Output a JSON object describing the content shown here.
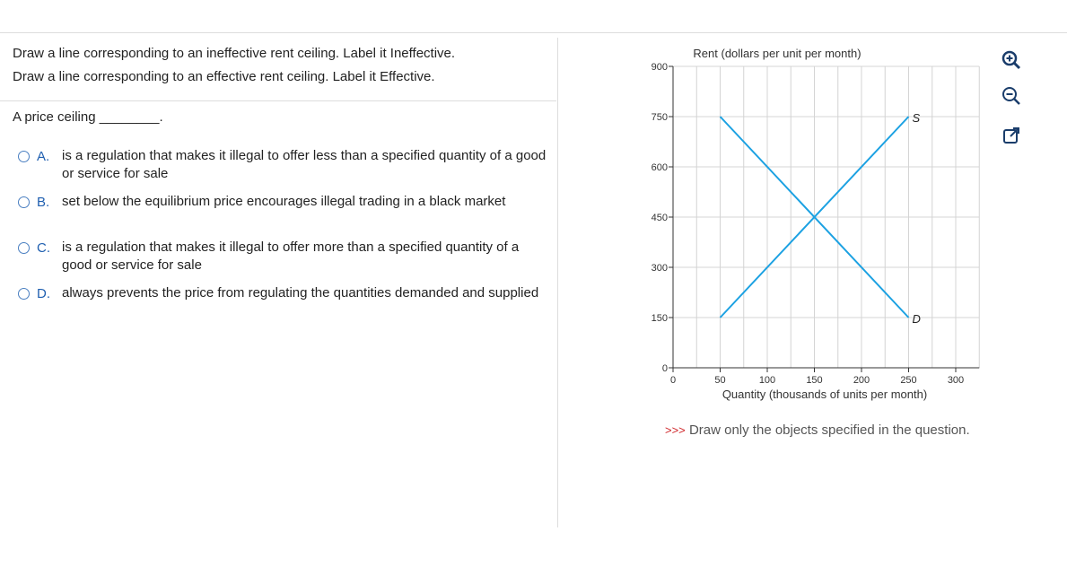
{
  "instructions": [
    "Draw a line corresponding to an ineffective rent ceiling. Label it Ineffective.",
    "Draw a line corresponding to an effective rent ceiling. Label it Effective."
  ],
  "question": "A price ceiling ________.",
  "options": [
    {
      "letter": "A.",
      "text": "is a regulation that makes it illegal to offer less than a specified quantity of a good or service for sale"
    },
    {
      "letter": "B.",
      "text": "set below the equilibrium price encourages illegal trading in a black market"
    },
    {
      "letter": "C.",
      "text": "is a regulation that makes it illegal to offer more than a specified quantity of a good or service for sale"
    },
    {
      "letter": "D.",
      "text": "always prevents the price from regulating the quantities demanded and supplied"
    }
  ],
  "chart_data": {
    "type": "line",
    "ylabel": "Rent (dollars per unit per month)",
    "xlabel": "Quantity (thousands of units per month)",
    "xlim": [
      0,
      325
    ],
    "ylim": [
      0,
      900
    ],
    "xticks": [
      0,
      50,
      100,
      150,
      200,
      250,
      300
    ],
    "yticks": [
      0,
      150,
      300,
      450,
      600,
      750,
      900
    ],
    "xgrid": [
      25,
      50,
      75,
      100,
      125,
      150,
      175,
      200,
      225,
      250,
      275,
      300,
      325
    ],
    "ygrid": [
      150,
      300,
      450,
      600,
      750,
      900
    ],
    "series": [
      {
        "name": "D",
        "color": "#1ba1e2",
        "x": [
          50,
          250
        ],
        "y": [
          750,
          150
        ]
      },
      {
        "name": "S",
        "color": "#1ba1e2",
        "x": [
          50,
          250
        ],
        "y": [
          150,
          750
        ]
      }
    ]
  },
  "hint": {
    "marker": ">>>",
    "text": "Draw only the objects specified in the question."
  }
}
